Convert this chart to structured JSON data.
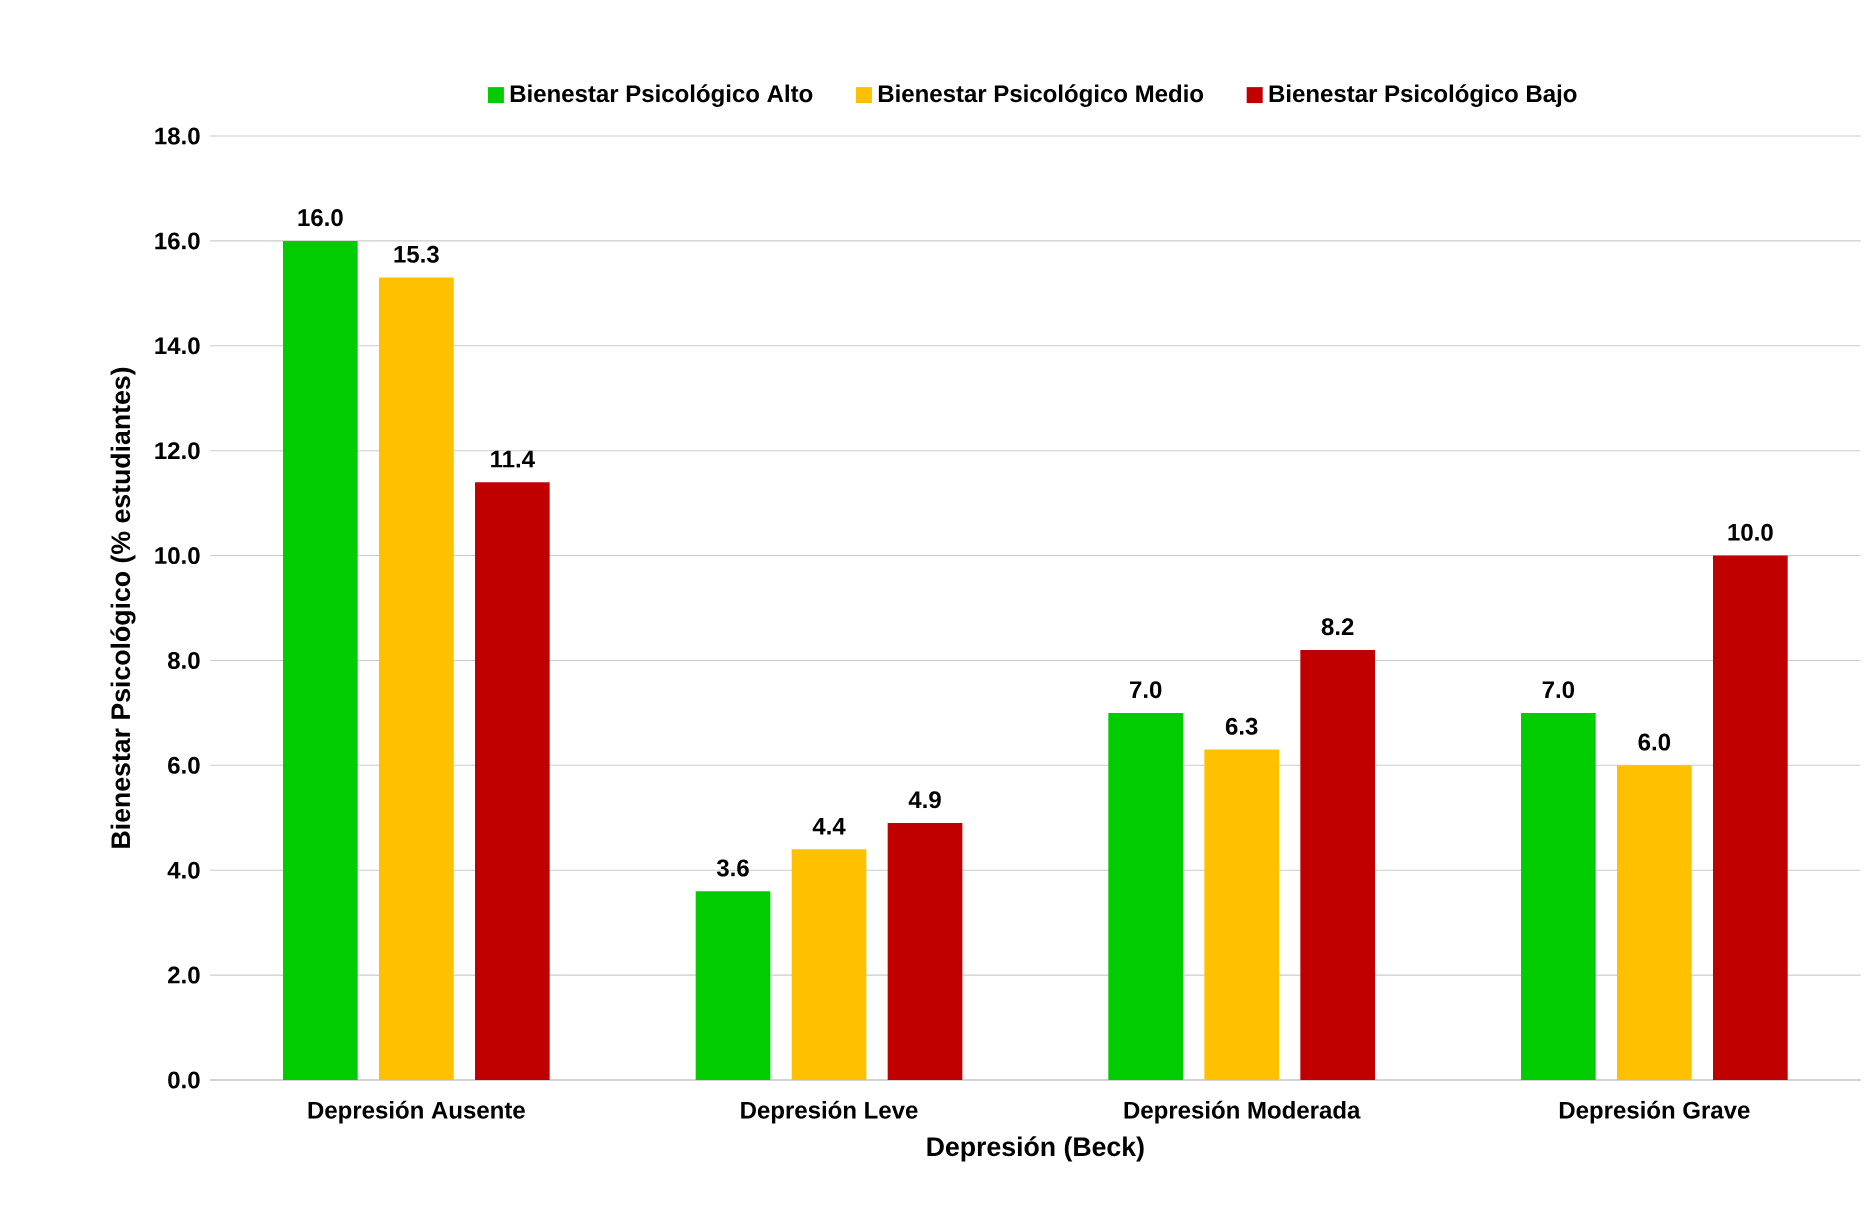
{
  "chart_data": {
    "type": "bar",
    "xlabel": "Depresión (Beck)",
    "ylabel": "Bienestar Psicológico (% estudiantes)",
    "categories": [
      "Depresión Ausente",
      "Depresión Leve",
      "Depresión Moderada",
      "Depresión Grave"
    ],
    "series": [
      {
        "name": "Bienestar Psicológico Alto",
        "color": "#00cc00",
        "values": [
          16.0,
          3.6,
          7.0,
          7.0
        ],
        "value_labels": [
          "16.0",
          "3.6",
          "7.0",
          "7.0"
        ]
      },
      {
        "name": "Bienestar Psicológico Medio",
        "color": "#ffc000",
        "values": [
          15.3,
          4.4,
          6.3,
          6.0
        ],
        "value_labels": [
          "15.3",
          "4.4",
          "6.3",
          "6.0"
        ]
      },
      {
        "name": "Bienestar Psicológico Bajo",
        "color": "#c00000",
        "values": [
          11.4,
          4.9,
          8.2,
          10.0
        ],
        "value_labels": [
          "11.4",
          "4.9",
          "8.2",
          "10.0"
        ]
      }
    ],
    "ylim": [
      0,
      18
    ],
    "yticks": [
      {
        "value": 0,
        "label": "0.0"
      },
      {
        "value": 2,
        "label": "2.0"
      },
      {
        "value": 4,
        "label": "4.0"
      },
      {
        "value": 6,
        "label": "6.0"
      },
      {
        "value": 8,
        "label": "8.0"
      },
      {
        "value": 10,
        "label": "10.0"
      },
      {
        "value": 12,
        "label": "12.0"
      },
      {
        "value": 14,
        "label": "14.0"
      },
      {
        "value": 16,
        "label": "16.0"
      },
      {
        "value": 18,
        "label": "18.0"
      }
    ],
    "grid": "y",
    "legend": "top"
  }
}
